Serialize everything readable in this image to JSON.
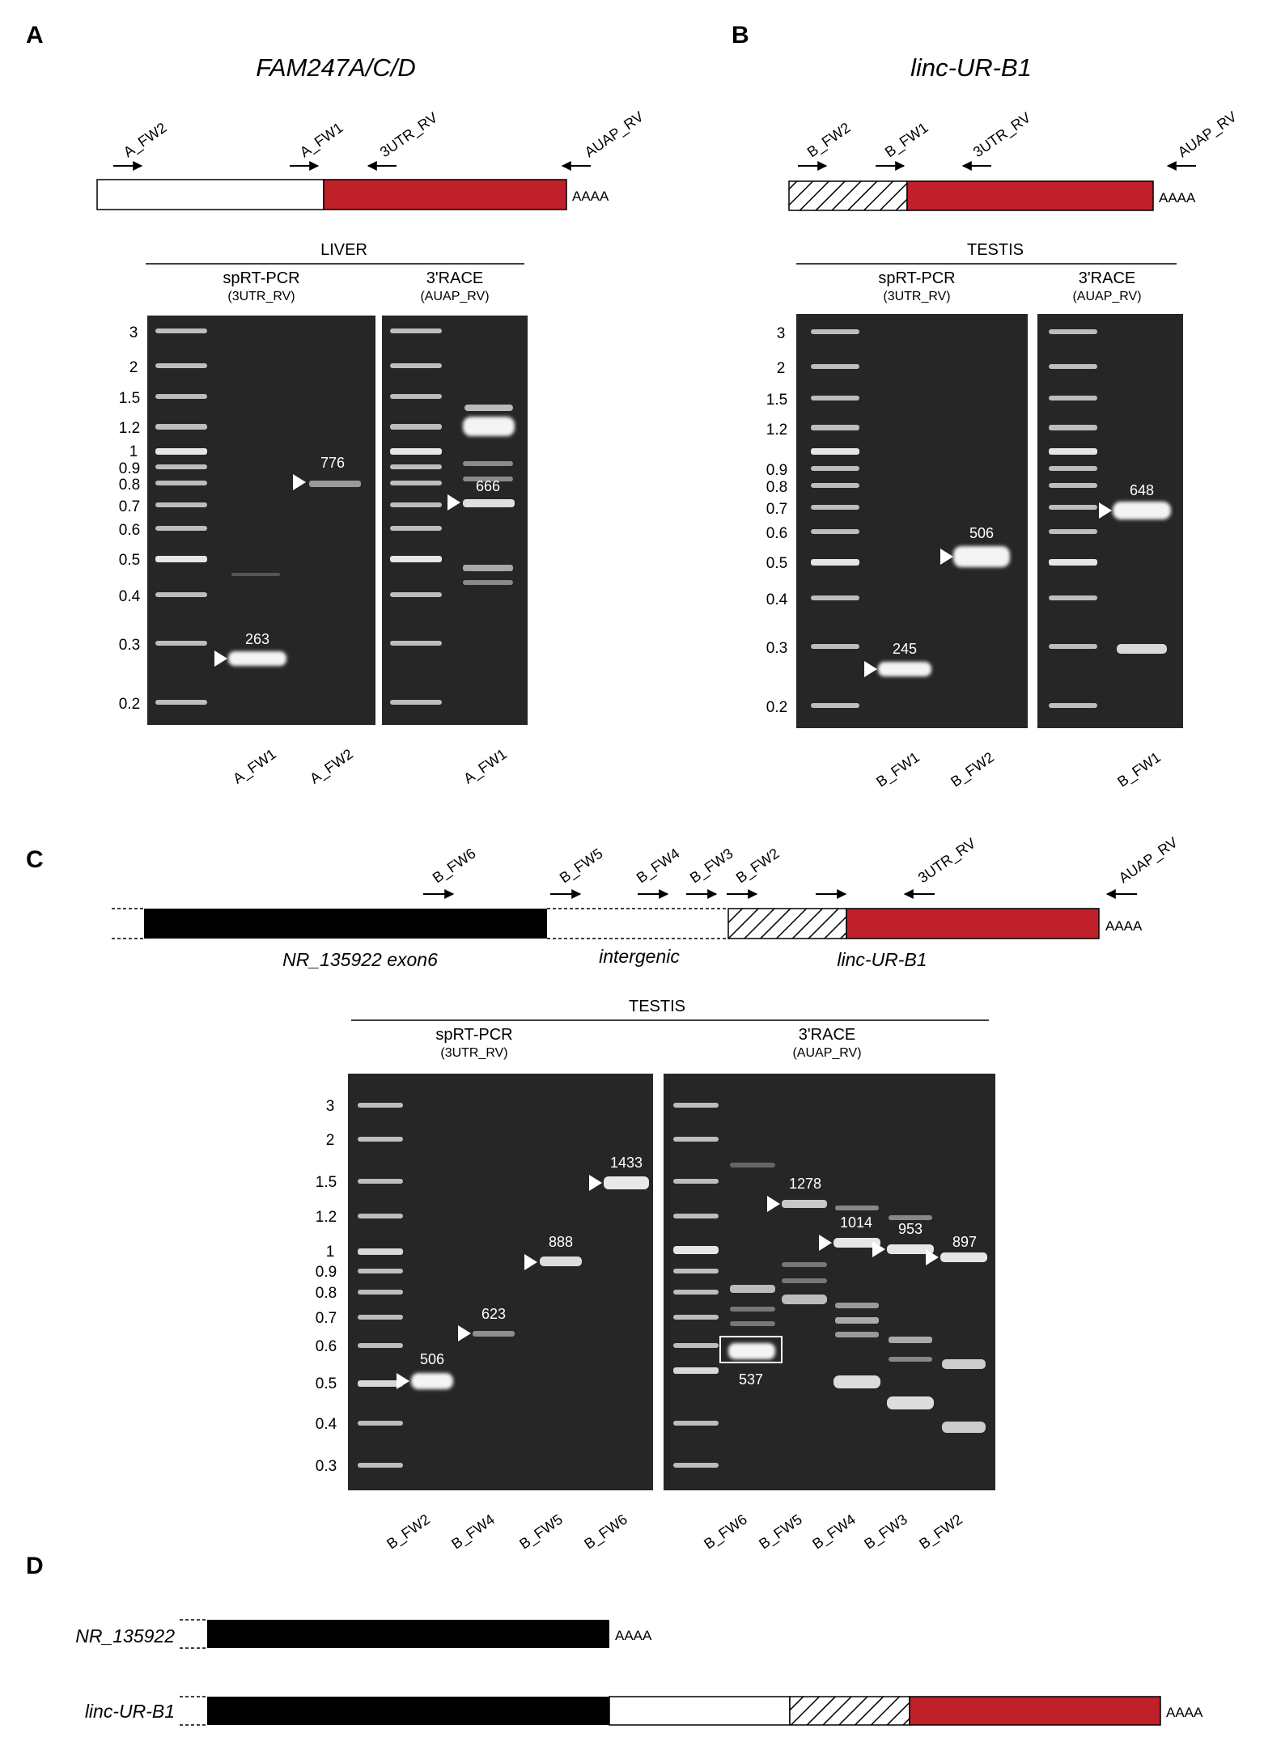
{
  "panels": {
    "A": {
      "label": "A",
      "gene": "FAM247A/C/D",
      "aaaa": "AAAA",
      "primers": [
        "A_FW2",
        "A_FW1",
        "3UTR_RV",
        "AUAP_RV"
      ],
      "tissue": "LIVER",
      "gel1": {
        "title": "spRT-PCR",
        "primer": "(3UTR_RV)",
        "lanes": [
          "A_FW1",
          "A_FW2"
        ]
      },
      "gel2": {
        "title": "3'RACE",
        "primer": "(AUAP_RV)",
        "lanes": [
          "A_FW1"
        ]
      },
      "markers": [
        "3",
        "2",
        "1.5",
        "1.2",
        "1",
        "0.9",
        "0.8",
        "0.7",
        "0.6",
        "0.5",
        "0.4",
        "0.3",
        "0.2"
      ],
      "bands": [
        "263",
        "776",
        "666"
      ]
    },
    "B": {
      "label": "B",
      "gene": "linc-UR-B1",
      "aaaa": "AAAA",
      "primers": [
        "B_FW2",
        "B_FW1",
        "3UTR_RV",
        "AUAP_RV"
      ],
      "tissue": "TESTIS",
      "gel1": {
        "title": "spRT-PCR",
        "primer": "(3UTR_RV)",
        "lanes": [
          "B_FW1",
          "B_FW2"
        ]
      },
      "gel2": {
        "title": "3'RACE",
        "primer": "(AUAP_RV)",
        "lanes": [
          "B_FW1"
        ]
      },
      "markers": [
        "3",
        "2",
        "1.5",
        "1.2",
        "0.9",
        "0.8",
        "0.7",
        "0.6",
        "0.5",
        "0.4",
        "0.3",
        "0.2"
      ],
      "bands": [
        "245",
        "506",
        "648"
      ]
    },
    "C": {
      "label": "C",
      "aaaa": "AAAA",
      "primers": [
        "B_FW6",
        "B_FW5",
        "B_FW4",
        "B_FW3",
        "B_FW2",
        "3UTR_RV",
        "AUAP_RV"
      ],
      "region_labels": [
        "NR_135922 exon6",
        "intergenic",
        "linc-UR-B1"
      ],
      "tissue": "TESTIS",
      "gel1": {
        "title": "spRT-PCR",
        "primer": "(3UTR_RV)",
        "lanes": [
          "B_FW2",
          "B_FW4",
          "B_FW5",
          "B_FW6"
        ]
      },
      "gel2": {
        "title": "3'RACE",
        "primer": "(AUAP_RV)",
        "lanes": [
          "B_FW6",
          "B_FW5",
          "B_FW4",
          "B_FW3",
          "B_FW2"
        ]
      },
      "markers": [
        "3",
        "2",
        "1.5",
        "1.2",
        "1",
        "0.9",
        "0.8",
        "0.7",
        "0.6",
        "0.5",
        "0.4",
        "0.3"
      ],
      "bands": [
        "506",
        "623",
        "888",
        "1433",
        "1278",
        "1014",
        "953",
        "897",
        "537"
      ]
    },
    "D": {
      "label": "D",
      "aaaa": "AAAA",
      "transcripts": [
        "NR_135922",
        "linc-UR-B1"
      ]
    }
  },
  "colors": {
    "exon_red": "#c0202a",
    "exon_black": "#000000",
    "gel_bg": "#262626",
    "band": "#f4f4f4"
  }
}
